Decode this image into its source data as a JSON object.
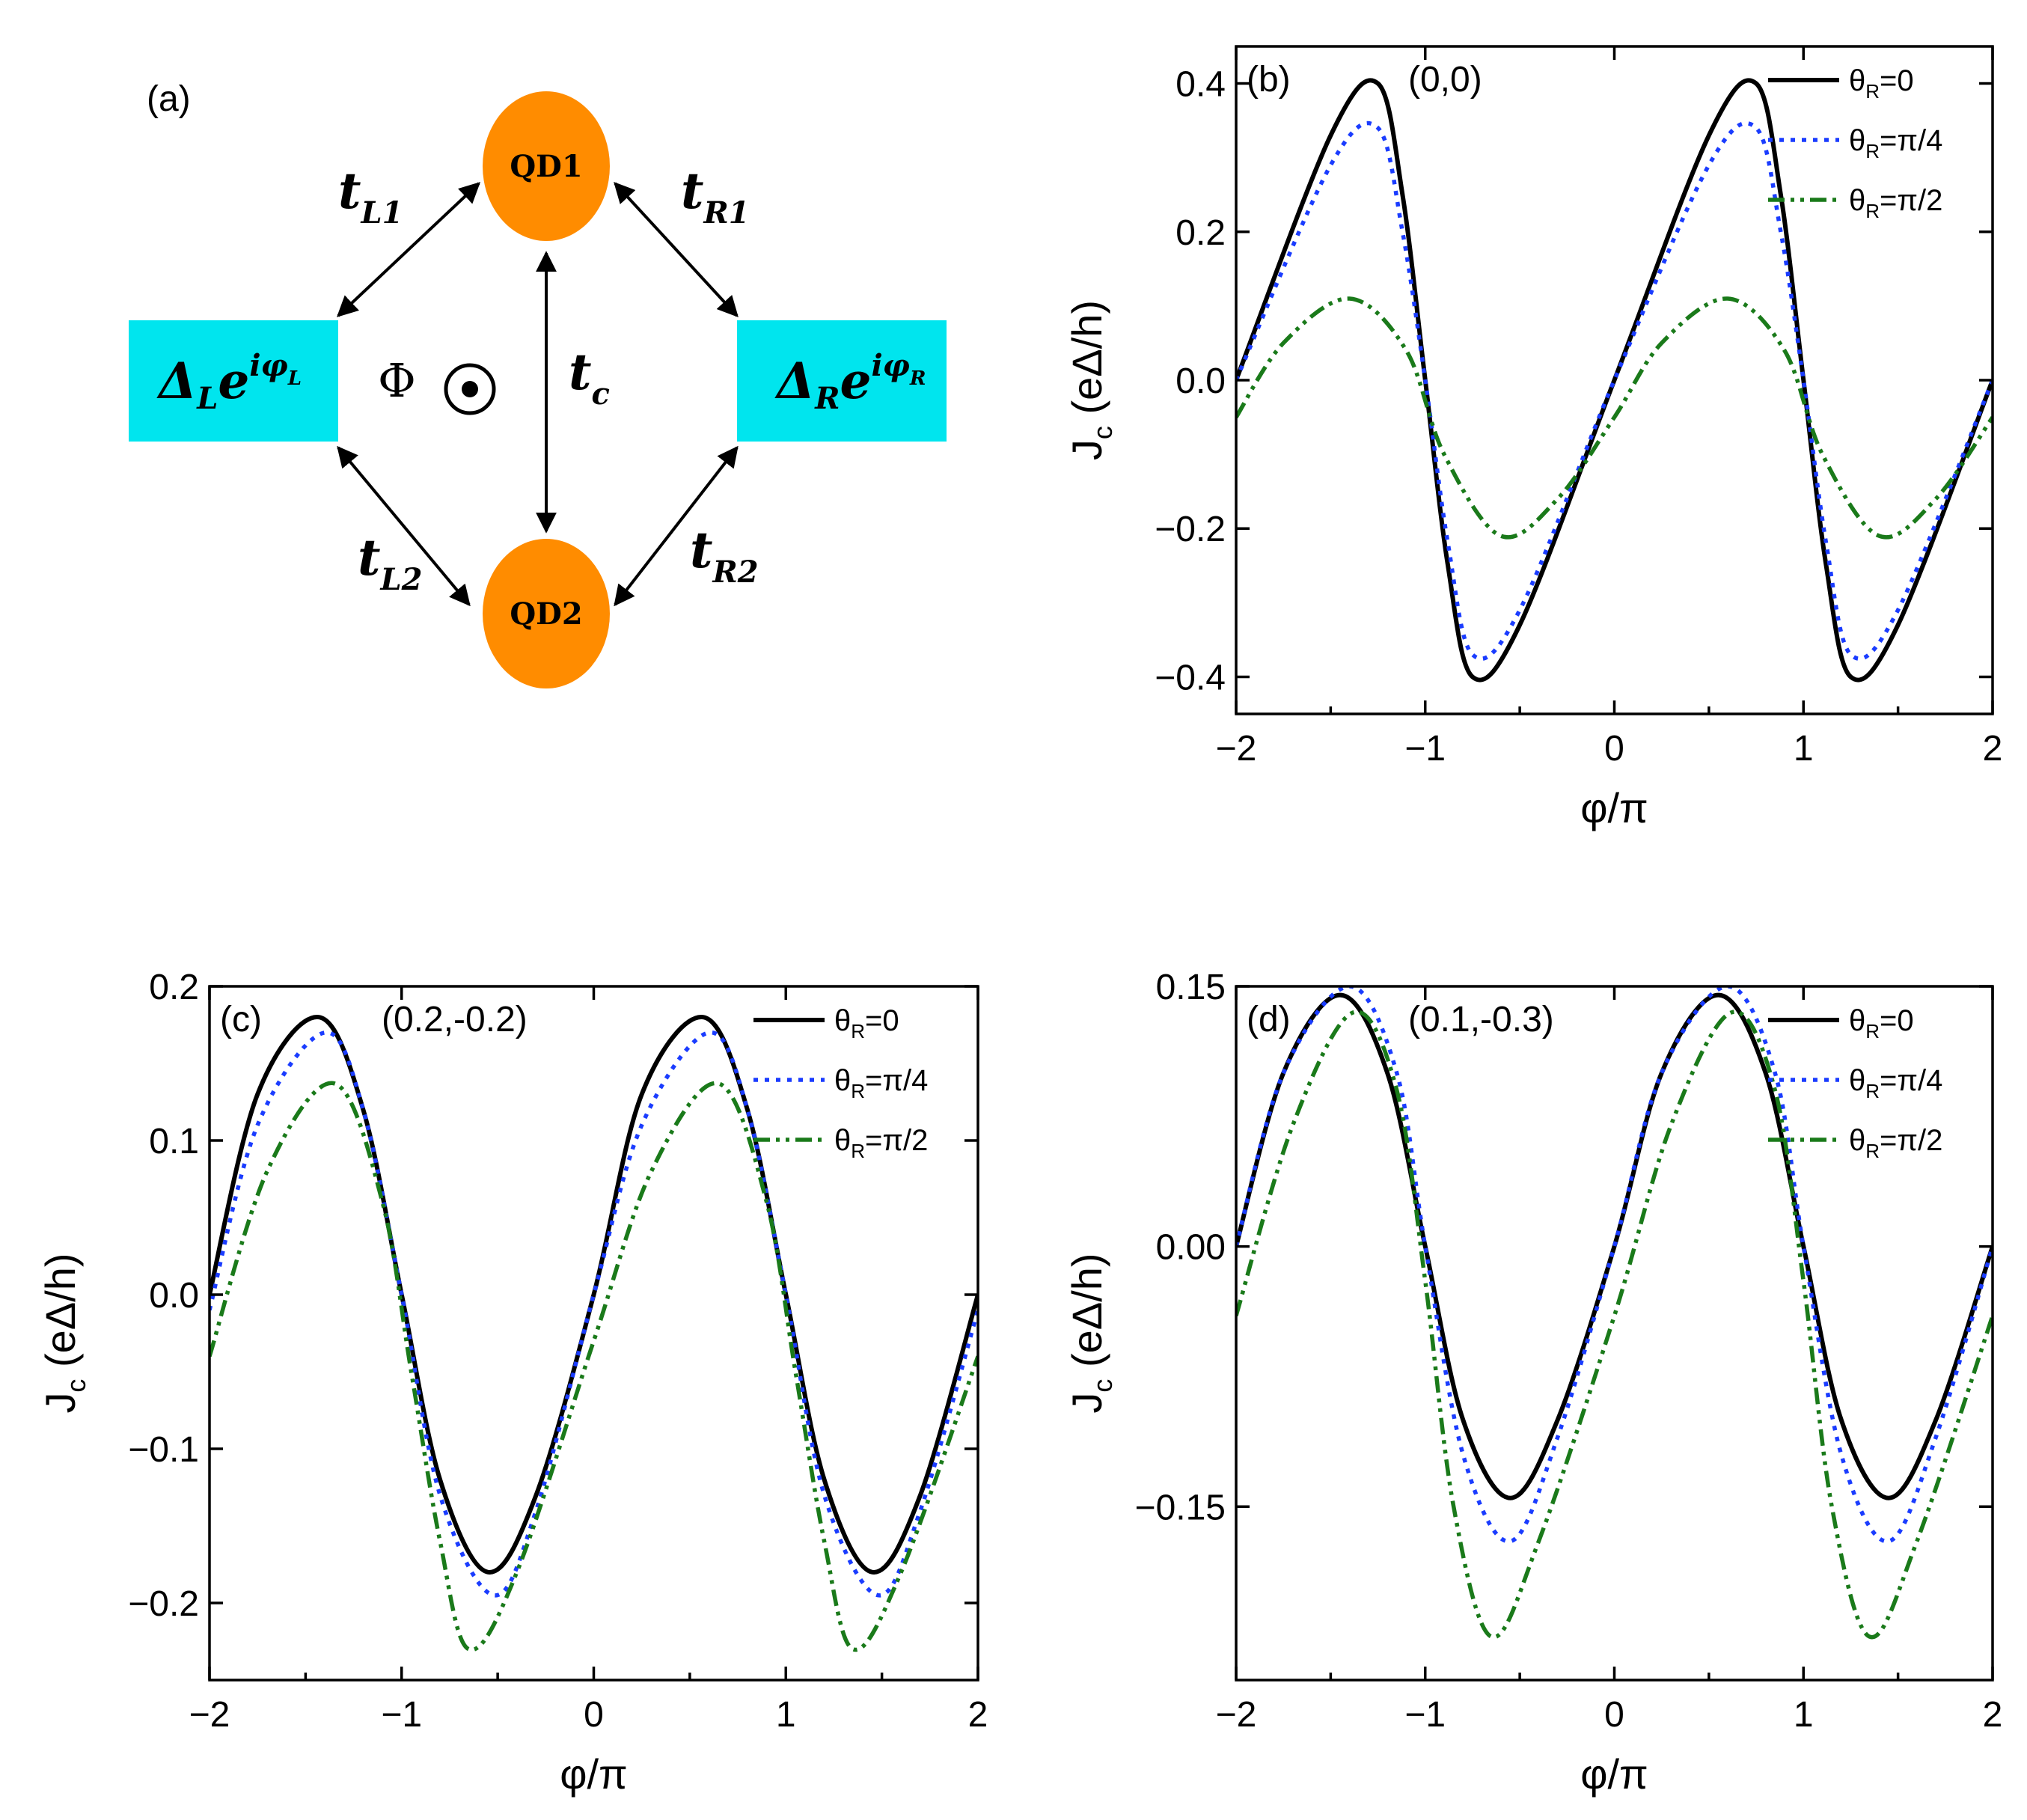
{
  "diagram": {
    "panel_label": "(a)",
    "qd1": "QD1",
    "qd2": "QD2",
    "left_lead": {
      "base": "Δ",
      "sub": "L",
      "exp": "e",
      "exp_sup": "iφ",
      "exp_sup_sub": "L"
    },
    "right_lead": {
      "base": "Δ",
      "sub": "R",
      "exp": "e",
      "exp_sup": "iφ",
      "exp_sup_sub": "R"
    },
    "flux": "Φ",
    "hoppings": [
      {
        "t": "t",
        "sub": "L1"
      },
      {
        "t": "t",
        "sub": "R1"
      },
      {
        "t": "t",
        "sub": "L2"
      },
      {
        "t": "t",
        "sub": "R2"
      },
      {
        "t": "t",
        "sub": "c"
      }
    ],
    "colors": {
      "dot": "#ff8c00",
      "lead": "#00e5ee"
    }
  },
  "chart_data": [
    {
      "type": "line",
      "panel": "(b)",
      "annotation": "(0,0)",
      "xlabel": "φ/π",
      "ylabel": "J",
      "ylabel_sub": "c",
      "ylabel_unit": " (eΔ/h)",
      "xlim": [
        -2,
        2
      ],
      "ylim": [
        -0.45,
        0.45
      ],
      "xticks": [
        "−2",
        "−1",
        "0",
        "1",
        "2"
      ],
      "yticks": [
        {
          "v": 0.4,
          "label": "0.4"
        },
        {
          "v": 0.2,
          "label": "0.2"
        },
        {
          "v": 0.0,
          "label": "0.0"
        },
        {
          "v": -0.2,
          "label": "−0.2"
        },
        {
          "v": -0.4,
          "label": "−0.4"
        }
      ],
      "series": [
        {
          "name": "θR=0",
          "theta": "0",
          "style": "solid",
          "color": "#000000",
          "points": [
            [
              -2,
              0.0
            ],
            [
              -1.5,
              0.33
            ],
            [
              -1.25,
              0.4
            ],
            [
              -1.12,
              0.25
            ],
            [
              -1.0,
              0.0
            ],
            [
              -0.88,
              -0.25
            ],
            [
              -0.75,
              -0.4
            ],
            [
              -0.5,
              -0.33
            ],
            [
              0,
              0.0
            ],
            [
              0.5,
              0.33
            ],
            [
              0.75,
              0.4
            ],
            [
              0.88,
              0.25
            ],
            [
              1.0,
              0.0
            ],
            [
              1.12,
              -0.25
            ],
            [
              1.25,
              -0.4
            ],
            [
              1.5,
              -0.33
            ],
            [
              2,
              0.0
            ]
          ]
        },
        {
          "name": "θR=π/4",
          "theta": "π/4",
          "style": "dot",
          "color": "#1a3cff",
          "points": [
            [
              -2,
              0.0
            ],
            [
              -1.5,
              0.29
            ],
            [
              -1.25,
              0.34
            ],
            [
              -1.12,
              0.2
            ],
            [
              -1.0,
              0.0
            ],
            [
              -0.88,
              -0.22
            ],
            [
              -0.75,
              -0.37
            ],
            [
              -0.5,
              -0.31
            ],
            [
              0,
              0.0
            ],
            [
              0.5,
              0.29
            ],
            [
              0.75,
              0.34
            ],
            [
              0.88,
              0.2
            ],
            [
              1.0,
              0.0
            ],
            [
              1.12,
              -0.22
            ],
            [
              1.25,
              -0.37
            ],
            [
              1.5,
              -0.31
            ],
            [
              2,
              0.0
            ]
          ]
        },
        {
          "name": "θR=π/2",
          "theta": "π/2",
          "style": "dashdotdot",
          "color": "#1a7a1a",
          "points": [
            [
              -2,
              -0.05
            ],
            [
              -1.75,
              0.05
            ],
            [
              -1.4,
              0.11
            ],
            [
              -1.1,
              0.04
            ],
            [
              -0.9,
              -0.1
            ],
            [
              -0.6,
              -0.21
            ],
            [
              -0.3,
              -0.16
            ],
            [
              0,
              -0.05
            ],
            [
              0.25,
              0.05
            ],
            [
              0.6,
              0.11
            ],
            [
              0.9,
              0.04
            ],
            [
              1.1,
              -0.1
            ],
            [
              1.4,
              -0.21
            ],
            [
              1.7,
              -0.16
            ],
            [
              2,
              -0.05
            ]
          ]
        }
      ],
      "legend": "top-right"
    },
    {
      "type": "line",
      "panel": "(c)",
      "annotation": "(0.2,-0.2)",
      "xlabel": "φ/π",
      "ylabel": "J",
      "ylabel_sub": "c",
      "ylabel_unit": " (eΔ/h)",
      "xlim": [
        -2,
        2
      ],
      "ylim": [
        -0.25,
        0.2
      ],
      "xticks": [
        "−2",
        "−1",
        "0",
        "1",
        "2"
      ],
      "yticks": [
        {
          "v": 0.2,
          "label": "0.2"
        },
        {
          "v": 0.1,
          "label": "0.1"
        },
        {
          "v": 0.0,
          "label": "0.0"
        },
        {
          "v": -0.1,
          "label": "−0.1"
        },
        {
          "v": -0.2,
          "label": "−0.2"
        }
      ],
      "series": [
        {
          "name": "θR=0",
          "theta": "0",
          "style": "solid",
          "color": "#000000",
          "points": [
            [
              -2,
              0.0
            ],
            [
              -1.75,
              0.13
            ],
            [
              -1.43,
              0.18
            ],
            [
              -1.2,
              0.12
            ],
            [
              -1.0,
              0.0
            ],
            [
              -0.8,
              -0.12
            ],
            [
              -0.55,
              -0.18
            ],
            [
              -0.3,
              -0.13
            ],
            [
              0,
              0.0
            ],
            [
              0.25,
              0.13
            ],
            [
              0.57,
              0.18
            ],
            [
              0.8,
              0.12
            ],
            [
              1.0,
              0.0
            ],
            [
              1.2,
              -0.12
            ],
            [
              1.45,
              -0.18
            ],
            [
              1.7,
              -0.13
            ],
            [
              2,
              0.0
            ]
          ]
        },
        {
          "name": "θR=π/4",
          "theta": "π/4",
          "style": "dot",
          "color": "#1a3cff",
          "points": [
            [
              -2,
              -0.01
            ],
            [
              -1.75,
              0.11
            ],
            [
              -1.4,
              0.17
            ],
            [
              -1.2,
              0.12
            ],
            [
              -1.0,
              0.0
            ],
            [
              -0.8,
              -0.13
            ],
            [
              -0.52,
              -0.195
            ],
            [
              -0.3,
              -0.14
            ],
            [
              0,
              0.0
            ],
            [
              0.25,
              0.11
            ],
            [
              0.6,
              0.17
            ],
            [
              0.8,
              0.12
            ],
            [
              1.0,
              0.0
            ],
            [
              1.2,
              -0.13
            ],
            [
              1.48,
              -0.195
            ],
            [
              1.7,
              -0.14
            ],
            [
              2,
              -0.01
            ]
          ]
        },
        {
          "name": "θR=π/2",
          "theta": "π/2",
          "style": "dashdotdot",
          "color": "#1a7a1a",
          "points": [
            [
              -2,
              -0.04
            ],
            [
              -1.7,
              0.08
            ],
            [
              -1.35,
              0.137
            ],
            [
              -1.1,
              0.06
            ],
            [
              -0.95,
              -0.05
            ],
            [
              -0.8,
              -0.16
            ],
            [
              -0.65,
              -0.23
            ],
            [
              -0.4,
              -0.18
            ],
            [
              0,
              -0.03
            ],
            [
              0.3,
              0.08
            ],
            [
              0.65,
              0.137
            ],
            [
              0.9,
              0.06
            ],
            [
              1.05,
              -0.05
            ],
            [
              1.2,
              -0.16
            ],
            [
              1.35,
              -0.23
            ],
            [
              1.6,
              -0.18
            ],
            [
              2,
              -0.04
            ]
          ]
        }
      ],
      "legend": "top-right"
    },
    {
      "type": "line",
      "panel": "(d)",
      "annotation": "(0.1,-0.3)",
      "xlabel": "φ/π",
      "ylabel": "J",
      "ylabel_sub": "c",
      "ylabel_unit": " (eΔ/h)",
      "xlim": [
        -2,
        2
      ],
      "ylim": [
        -0.25,
        0.15
      ],
      "xticks": [
        "−2",
        "−1",
        "0",
        "1",
        "2"
      ],
      "yticks": [
        {
          "v": 0.15,
          "label": "0.15"
        },
        {
          "v": 0.0,
          "label": "0.00"
        },
        {
          "v": -0.15,
          "label": "−0.15"
        }
      ],
      "series": [
        {
          "name": "θR=0",
          "theta": "0",
          "style": "solid",
          "color": "#000000",
          "points": [
            [
              -2,
              0.0
            ],
            [
              -1.75,
              0.1
            ],
            [
              -1.45,
              0.145
            ],
            [
              -1.2,
              0.1
            ],
            [
              -1.0,
              0.0
            ],
            [
              -0.8,
              -0.1
            ],
            [
              -0.55,
              -0.145
            ],
            [
              -0.3,
              -0.1
            ],
            [
              0,
              0.0
            ],
            [
              0.25,
              0.1
            ],
            [
              0.55,
              0.145
            ],
            [
              0.8,
              0.1
            ],
            [
              1.0,
              0.0
            ],
            [
              1.2,
              -0.1
            ],
            [
              1.45,
              -0.145
            ],
            [
              1.7,
              -0.1
            ],
            [
              2,
              0.0
            ]
          ]
        },
        {
          "name": "θR=π/4",
          "theta": "π/4",
          "style": "dot",
          "color": "#1a3cff",
          "points": [
            [
              -2,
              0.0
            ],
            [
              -1.75,
              0.1
            ],
            [
              -1.4,
              0.15
            ],
            [
              -1.15,
              0.1
            ],
            [
              -1.0,
              0.0
            ],
            [
              -0.8,
              -0.12
            ],
            [
              -0.55,
              -0.17
            ],
            [
              -0.3,
              -0.11
            ],
            [
              0,
              0.0
            ],
            [
              0.25,
              0.1
            ],
            [
              0.6,
              0.15
            ],
            [
              0.85,
              0.1
            ],
            [
              1.0,
              0.0
            ],
            [
              1.2,
              -0.12
            ],
            [
              1.45,
              -0.17
            ],
            [
              1.7,
              -0.11
            ],
            [
              2,
              0.0
            ]
          ]
        },
        {
          "name": "θR=π/2",
          "theta": "π/2",
          "style": "dashdotdot",
          "color": "#1a7a1a",
          "points": [
            [
              -2,
              -0.04
            ],
            [
              -1.7,
              0.07
            ],
            [
              -1.38,
              0.135
            ],
            [
              -1.15,
              0.09
            ],
            [
              -1.0,
              -0.02
            ],
            [
              -0.85,
              -0.15
            ],
            [
              -0.65,
              -0.225
            ],
            [
              -0.4,
              -0.17
            ],
            [
              0,
              -0.04
            ],
            [
              0.3,
              0.07
            ],
            [
              0.62,
              0.135
            ],
            [
              0.85,
              0.09
            ],
            [
              1.0,
              -0.02
            ],
            [
              1.15,
              -0.15
            ],
            [
              1.35,
              -0.225
            ],
            [
              1.6,
              -0.17
            ],
            [
              2,
              -0.04
            ]
          ]
        }
      ],
      "legend": "top-right"
    }
  ]
}
